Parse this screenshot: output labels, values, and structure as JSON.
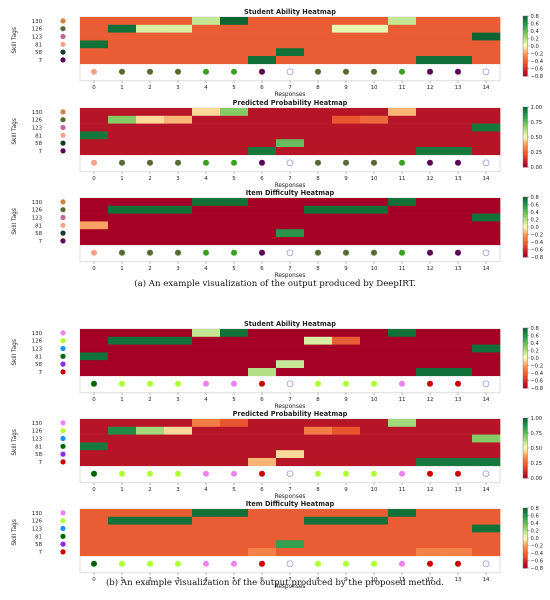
{
  "captions": [
    "(a) An example visualization of the output produced by DeepIRT.",
    "(b) An example visualization of the output produced by the proposed method."
  ],
  "palette": {
    "cell_hi": "#1a6b37",
    "cell_lo": "#a50026",
    "cell_mid": "#fdffbf",
    "frame": "#c8c8c8",
    "text": "#222222"
  },
  "chart_data": [
    {
      "type": "heatmap",
      "title": "Student Ability Heatmap",
      "xlabel": "Responses",
      "ylabel": "Skill Tags",
      "x": [
        "0",
        "1",
        "2",
        "3",
        "4",
        "5",
        "6",
        "7",
        "8",
        "9",
        "10",
        "11",
        "12",
        "13",
        "14"
      ],
      "y": [
        "130",
        "126",
        "123",
        "81",
        "58",
        "7"
      ],
      "colorbar": {
        "ticks": [
          "0.8",
          "0.6",
          "0.4",
          "0.2",
          "0.0",
          "−0.2",
          "−0.4",
          "−0.6",
          "−0.8"
        ],
        "range": [
          -0.8,
          0.8
        ]
      },
      "values": [
        [
          -0.45,
          -0.45,
          -0.45,
          -0.45,
          0.15,
          0.8,
          -0.45,
          -0.45,
          -0.45,
          -0.45,
          -0.45,
          0.15,
          -0.45,
          -0.45,
          -0.45
        ],
        [
          -0.45,
          0.75,
          0.1,
          0.1,
          -0.45,
          -0.45,
          -0.45,
          -0.45,
          -0.45,
          0.05,
          0.05,
          -0.45,
          -0.45,
          -0.45,
          -0.45
        ],
        [
          -0.45,
          -0.45,
          -0.45,
          -0.45,
          -0.45,
          -0.45,
          -0.45,
          -0.45,
          -0.45,
          -0.45,
          -0.45,
          -0.45,
          -0.45,
          -0.45,
          0.8
        ],
        [
          0.75,
          -0.45,
          -0.45,
          -0.45,
          -0.45,
          -0.45,
          -0.45,
          -0.45,
          -0.45,
          -0.45,
          -0.45,
          -0.45,
          -0.45,
          -0.45,
          -0.45
        ],
        [
          -0.45,
          -0.45,
          -0.45,
          -0.45,
          -0.45,
          -0.45,
          -0.45,
          0.75,
          -0.45,
          -0.45,
          -0.45,
          -0.45,
          -0.45,
          -0.45,
          -0.45
        ],
        [
          -0.45,
          -0.45,
          -0.45,
          -0.45,
          -0.45,
          -0.45,
          0.75,
          -0.45,
          -0.45,
          -0.45,
          -0.45,
          -0.45,
          0.75,
          0.75,
          -0.45
        ]
      ],
      "tag_colors": [
        "#cd853f",
        "#556b2f",
        "#c2669a",
        "#f5a287",
        "#173b2c",
        "#5c0055"
      ],
      "response_colors": [
        "#f5a287",
        "#556b2f",
        "#556b2f",
        "#556b2f",
        "#3aa020",
        "#3aa020",
        "#5c0055",
        "none",
        "#556b2f",
        "#556b2f",
        "#556b2f",
        "#3aa020",
        "#5c0055",
        "#5c0055",
        "none"
      ]
    },
    {
      "type": "heatmap",
      "title": "Predicted Probability Heatmap",
      "xlabel": "Responses",
      "ylabel": "Skill Tags",
      "x": [
        "0",
        "1",
        "2",
        "3",
        "4",
        "5",
        "6",
        "7",
        "8",
        "9",
        "10",
        "11",
        "12",
        "13",
        "14"
      ],
      "y": [
        "130",
        "126",
        "123",
        "81",
        "58",
        "7"
      ],
      "colorbar": {
        "ticks": [
          "1.00",
          "0.75",
          "0.50",
          "0.25",
          "0.00"
        ],
        "range": [
          0,
          1
        ]
      },
      "values": [
        [
          0.05,
          0.05,
          0.05,
          0.05,
          0.45,
          0.7,
          0.05,
          0.05,
          0.05,
          0.05,
          0.05,
          0.4,
          0.05,
          0.05,
          0.05
        ],
        [
          0.05,
          0.7,
          0.45,
          0.4,
          0.05,
          0.05,
          0.05,
          0.05,
          0.05,
          0.2,
          0.25,
          0.05,
          0.05,
          0.05,
          0.05
        ],
        [
          0.05,
          0.05,
          0.05,
          0.05,
          0.05,
          0.05,
          0.05,
          0.05,
          0.05,
          0.05,
          0.05,
          0.05,
          0.05,
          0.05,
          0.95
        ],
        [
          0.95,
          0.05,
          0.05,
          0.05,
          0.05,
          0.05,
          0.05,
          0.05,
          0.05,
          0.05,
          0.05,
          0.05,
          0.05,
          0.05,
          0.05
        ],
        [
          0.05,
          0.05,
          0.05,
          0.05,
          0.05,
          0.05,
          0.05,
          0.75,
          0.05,
          0.05,
          0.05,
          0.05,
          0.05,
          0.05,
          0.05
        ],
        [
          0.05,
          0.05,
          0.05,
          0.05,
          0.05,
          0.05,
          0.95,
          0.05,
          0.05,
          0.05,
          0.05,
          0.05,
          0.95,
          0.95,
          0.05
        ]
      ],
      "tag_colors": [
        "#cd853f",
        "#556b2f",
        "#c2669a",
        "#f5a287",
        "#173b2c",
        "#5c0055"
      ],
      "response_colors": [
        "#f5a287",
        "#556b2f",
        "#556b2f",
        "#556b2f",
        "#3aa020",
        "#3aa020",
        "#5c0055",
        "none",
        "#556b2f",
        "#556b2f",
        "#556b2f",
        "#3aa020",
        "#5c0055",
        "#5c0055",
        "none"
      ]
    },
    {
      "type": "heatmap",
      "title": "Item Difficulty Heatmap",
      "xlabel": "Responses",
      "ylabel": "Skill Tags",
      "x": [
        "0",
        "1",
        "2",
        "3",
        "4",
        "5",
        "6",
        "7",
        "8",
        "9",
        "10",
        "11",
        "12",
        "13",
        "14"
      ],
      "y": [
        "130",
        "126",
        "123",
        "81",
        "58",
        "7"
      ],
      "colorbar": {
        "ticks": [
          "0.8",
          "0.6",
          "0.4",
          "0.2",
          "0.0",
          "−0.2",
          "−0.4",
          "−0.6",
          "−0.8"
        ],
        "range": [
          -0.8,
          0.8
        ]
      },
      "values": [
        [
          -0.8,
          -0.8,
          -0.8,
          -0.8,
          0.75,
          0.75,
          -0.8,
          -0.8,
          -0.8,
          -0.8,
          -0.8,
          0.75,
          -0.8,
          -0.8,
          -0.8
        ],
        [
          -0.8,
          0.75,
          0.75,
          0.75,
          -0.8,
          -0.8,
          -0.8,
          -0.8,
          0.75,
          0.75,
          0.75,
          -0.8,
          -0.8,
          -0.8,
          -0.8
        ],
        [
          -0.8,
          -0.8,
          -0.8,
          -0.8,
          -0.8,
          -0.8,
          -0.8,
          -0.8,
          -0.8,
          -0.8,
          -0.8,
          -0.8,
          -0.8,
          -0.8,
          0.75
        ],
        [
          -0.2,
          -0.8,
          -0.8,
          -0.8,
          -0.8,
          -0.8,
          -0.8,
          -0.8,
          -0.8,
          -0.8,
          -0.8,
          -0.8,
          -0.8,
          -0.8,
          -0.8
        ],
        [
          -0.8,
          -0.8,
          -0.8,
          -0.8,
          -0.8,
          -0.8,
          -0.8,
          0.6,
          -0.8,
          -0.8,
          -0.8,
          -0.8,
          -0.8,
          -0.8,
          -0.8
        ],
        [
          -0.8,
          -0.8,
          -0.8,
          -0.8,
          -0.8,
          -0.8,
          -0.8,
          -0.8,
          -0.8,
          -0.8,
          -0.8,
          -0.8,
          -0.8,
          -0.8,
          -0.8
        ]
      ],
      "tag_colors": [
        "#cd853f",
        "#556b2f",
        "#c2669a",
        "#f5a287",
        "#173b2c",
        "#5c0055"
      ],
      "response_colors": [
        "#f5a287",
        "#556b2f",
        "#556b2f",
        "#556b2f",
        "#3aa020",
        "#3aa020",
        "#5c0055",
        "none",
        "#556b2f",
        "#556b2f",
        "#556b2f",
        "#3aa020",
        "#5c0055",
        "#5c0055",
        "none"
      ]
    },
    {
      "type": "heatmap",
      "title": "Student Ability Heatmap",
      "xlabel": "Responses",
      "ylabel": "Skill Tags",
      "x": [
        "0",
        "1",
        "2",
        "3",
        "4",
        "5",
        "6",
        "7",
        "8",
        "9",
        "10",
        "11",
        "12",
        "13",
        "14"
      ],
      "y": [
        "130",
        "126",
        "123",
        "81",
        "58",
        "7"
      ],
      "colorbar": {
        "ticks": [
          "0.8",
          "0.6",
          "0.4",
          "0.2",
          "0.0",
          "−0.2",
          "−0.4",
          "−0.6",
          "−0.8"
        ],
        "range": [
          -0.8,
          0.8
        ]
      },
      "values": [
        [
          -0.8,
          -0.8,
          -0.8,
          -0.8,
          0.15,
          0.75,
          -0.8,
          -0.8,
          -0.8,
          -0.8,
          -0.8,
          0.75,
          -0.8,
          -0.8,
          -0.8
        ],
        [
          -0.8,
          0.75,
          0.75,
          0.75,
          -0.8,
          -0.8,
          -0.8,
          -0.8,
          0.1,
          -0.45,
          -0.8,
          -0.8,
          -0.8,
          -0.8,
          -0.8
        ],
        [
          -0.8,
          -0.8,
          -0.8,
          -0.8,
          -0.8,
          -0.8,
          -0.8,
          -0.8,
          -0.8,
          -0.8,
          -0.8,
          -0.8,
          -0.8,
          -0.8,
          0.75
        ],
        [
          0.75,
          -0.8,
          -0.8,
          -0.8,
          -0.8,
          -0.8,
          -0.8,
          -0.8,
          -0.8,
          -0.8,
          -0.8,
          -0.8,
          -0.8,
          -0.8,
          -0.8
        ],
        [
          -0.8,
          -0.8,
          -0.8,
          -0.8,
          -0.8,
          -0.8,
          -0.8,
          0.15,
          -0.8,
          -0.8,
          -0.8,
          -0.8,
          -0.8,
          -0.8,
          -0.8
        ],
        [
          -0.8,
          -0.8,
          -0.8,
          -0.8,
          -0.8,
          -0.8,
          0.2,
          -0.8,
          -0.8,
          -0.8,
          -0.8,
          -0.8,
          0.75,
          0.75,
          -0.8
        ]
      ],
      "tag_colors": [
        "#ee82ee",
        "#adff2f",
        "#1e90ff",
        "#006400",
        "#8a2be2",
        "#cc0000"
      ],
      "response_colors": [
        "#006400",
        "#adff2f",
        "#adff2f",
        "#adff2f",
        "#ee82ee",
        "#ee82ee",
        "#cc0000",
        "none",
        "#adff2f",
        "#adff2f",
        "#adff2f",
        "#ee82ee",
        "#cc0000",
        "#cc0000",
        "none"
      ]
    },
    {
      "type": "heatmap",
      "title": "Predicted Probability Heatmap",
      "xlabel": "Responses",
      "ylabel": "Skill Tags",
      "x": [
        "0",
        "1",
        "2",
        "3",
        "4",
        "5",
        "6",
        "7",
        "8",
        "9",
        "10",
        "11",
        "12",
        "13",
        "14"
      ],
      "y": [
        "130",
        "126",
        "123",
        "81",
        "58",
        "7"
      ],
      "colorbar": {
        "ticks": [
          "1.00",
          "0.75",
          "0.50",
          "0.25",
          "0.00"
        ],
        "range": [
          0,
          1
        ]
      },
      "values": [
        [
          0.05,
          0.05,
          0.05,
          0.05,
          0.3,
          0.2,
          0.05,
          0.05,
          0.05,
          0.05,
          0.05,
          0.65,
          0.05,
          0.05,
          0.05
        ],
        [
          0.05,
          0.9,
          0.65,
          0.45,
          0.05,
          0.05,
          0.05,
          0.05,
          0.3,
          0.2,
          0.05,
          0.05,
          0.05,
          0.05,
          0.05
        ],
        [
          0.05,
          0.05,
          0.05,
          0.05,
          0.05,
          0.05,
          0.05,
          0.05,
          0.05,
          0.05,
          0.05,
          0.05,
          0.05,
          0.05,
          0.7
        ],
        [
          0.95,
          0.05,
          0.05,
          0.05,
          0.05,
          0.05,
          0.05,
          0.05,
          0.05,
          0.05,
          0.05,
          0.05,
          0.05,
          0.05,
          0.05
        ],
        [
          0.05,
          0.05,
          0.05,
          0.05,
          0.05,
          0.05,
          0.05,
          0.45,
          0.05,
          0.05,
          0.05,
          0.05,
          0.05,
          0.05,
          0.05
        ],
        [
          0.05,
          0.05,
          0.05,
          0.05,
          0.05,
          0.05,
          0.4,
          0.05,
          0.05,
          0.05,
          0.05,
          0.05,
          0.95,
          0.95,
          0.95
        ]
      ],
      "tag_colors": [
        "#ee82ee",
        "#adff2f",
        "#1e90ff",
        "#006400",
        "#8a2be2",
        "#cc0000"
      ],
      "response_colors": [
        "#006400",
        "#adff2f",
        "#adff2f",
        "#adff2f",
        "#ee82ee",
        "#ee82ee",
        "#cc0000",
        "none",
        "#adff2f",
        "#adff2f",
        "#adff2f",
        "#ee82ee",
        "#cc0000",
        "#cc0000",
        "none"
      ]
    },
    {
      "type": "heatmap",
      "title": "Item Difficulty Heatmap",
      "xlabel": "Responses",
      "ylabel": "Skill Tags",
      "x": [
        "0",
        "1",
        "2",
        "3",
        "4",
        "5",
        "6",
        "7",
        "8",
        "9",
        "10",
        "11",
        "12",
        "13",
        "14"
      ],
      "y": [
        "130",
        "126",
        "123",
        "81",
        "58",
        "7"
      ],
      "colorbar": {
        "ticks": [
          "0.8",
          "0.6",
          "0.4",
          "0.2",
          "0.0",
          "−0.2",
          "−0.4",
          "−0.6",
          "−0.8"
        ],
        "range": [
          -0.8,
          0.8
        ]
      },
      "values": [
        [
          -0.45,
          -0.45,
          -0.45,
          -0.45,
          0.75,
          0.75,
          -0.45,
          -0.45,
          -0.45,
          -0.45,
          -0.45,
          0.75,
          -0.45,
          -0.45,
          -0.45
        ],
        [
          -0.45,
          0.75,
          0.75,
          0.75,
          -0.45,
          -0.45,
          -0.45,
          -0.45,
          0.75,
          0.75,
          0.75,
          -0.45,
          -0.45,
          -0.45,
          -0.45
        ],
        [
          -0.45,
          -0.45,
          -0.45,
          -0.45,
          -0.45,
          -0.45,
          -0.45,
          -0.45,
          -0.45,
          -0.45,
          -0.45,
          -0.45,
          -0.45,
          -0.45,
          0.75
        ],
        [
          -0.45,
          -0.45,
          -0.45,
          -0.45,
          -0.45,
          -0.45,
          -0.45,
          -0.45,
          -0.45,
          -0.45,
          -0.45,
          -0.45,
          -0.45,
          -0.45,
          -0.45
        ],
        [
          -0.45,
          -0.45,
          -0.45,
          -0.45,
          -0.45,
          -0.45,
          -0.45,
          0.55,
          -0.45,
          -0.45,
          -0.45,
          -0.45,
          -0.45,
          -0.45,
          -0.45
        ],
        [
          -0.45,
          -0.45,
          -0.45,
          -0.45,
          -0.45,
          -0.45,
          -0.3,
          -0.45,
          -0.45,
          -0.45,
          -0.45,
          -0.45,
          -0.3,
          -0.3,
          -0.45
        ]
      ],
      "tag_colors": [
        "#ee82ee",
        "#adff2f",
        "#1e90ff",
        "#006400",
        "#8a2be2",
        "#cc0000"
      ],
      "response_colors": [
        "#006400",
        "#adff2f",
        "#adff2f",
        "#adff2f",
        "#ee82ee",
        "#ee82ee",
        "#cc0000",
        "none",
        "#adff2f",
        "#adff2f",
        "#adff2f",
        "#ee82ee",
        "#cc0000",
        "#cc0000",
        "none"
      ]
    }
  ]
}
